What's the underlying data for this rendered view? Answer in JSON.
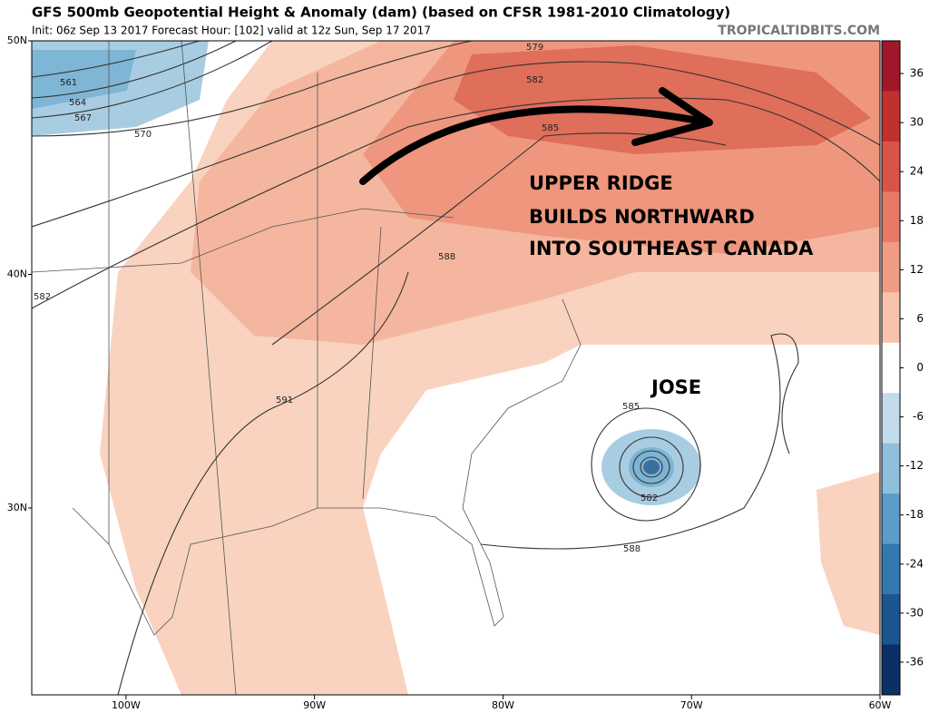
{
  "header": {
    "title": "GFS 500mb Geopotential Height & Anomaly (dam) (based on CFSR 1981-2010 Climatology)",
    "subtitle": "Init: 06z Sep 13 2017   Forecast Hour: [102]   valid at 12z Sun, Sep 17 2017",
    "watermark": "TROPICALTIDBITS.COM"
  },
  "map": {
    "lonlim": [
      -105,
      -60
    ],
    "latlim": [
      22,
      50
    ],
    "lon_ticks": [
      {
        "value": -100,
        "label": "100W"
      },
      {
        "value": -90,
        "label": "90W"
      },
      {
        "value": -80,
        "label": "80W"
      },
      {
        "value": -70,
        "label": "70W"
      },
      {
        "value": -60,
        "label": "60W"
      }
    ],
    "lat_ticks": [
      {
        "value": 50,
        "label": "50N"
      },
      {
        "value": 40,
        "label": "40N"
      },
      {
        "value": 30,
        "label": "30N"
      }
    ],
    "contour_labels": [
      561,
      564,
      567,
      570,
      579,
      582,
      585,
      588,
      582,
      591,
      585,
      582,
      588
    ],
    "annotations": [
      "UPPER RIDGE",
      "BUILDS NORTHWARD",
      "INTO SOUTHEAST CANADA",
      "JOSE"
    ]
  },
  "colorbar": {
    "clim": [
      -40,
      40
    ],
    "ticks": [
      36,
      30,
      24,
      18,
      12,
      6,
      0,
      -6,
      -12,
      -18,
      -24,
      -30,
      -36
    ],
    "colors": [
      "#a0182a",
      "#c0302e",
      "#d9534a",
      "#e77a64",
      "#f09c84",
      "#f7c3ad",
      "#ffffff",
      "#c3dcec",
      "#8fbfdc",
      "#5b9dc8",
      "#3478b0",
      "#1c5590",
      "#0c2f66"
    ]
  }
}
